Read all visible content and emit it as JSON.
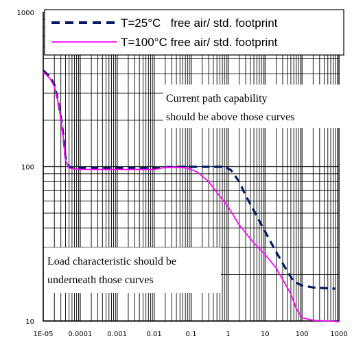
{
  "chart_data": {
    "type": "line",
    "x_scale": "log",
    "y_scale": "log",
    "xlim": [
      1e-05,
      1000
    ],
    "ylim": [
      10,
      1000
    ],
    "x_tick_labels": [
      "1E-05",
      "0.0001",
      "0.001",
      "0.01",
      "0.1",
      "1",
      "10",
      "100",
      "1000"
    ],
    "y_tick_labels": [
      "10",
      "100",
      "1000"
    ],
    "grid": true,
    "legend_position": "top-right",
    "series": [
      {
        "name": "T=25°C   free air/ std. footprint",
        "color": "#001a66",
        "style": "dashed",
        "x": [
          1e-05,
          1.5e-05,
          2e-05,
          2.5e-05,
          3e-05,
          3.5e-05,
          4e-05,
          5e-05,
          6e-05,
          8e-05,
          0.0001,
          0.0002,
          0.001,
          0.01,
          0.03,
          0.1,
          0.3,
          0.8,
          1.2,
          2,
          3,
          5,
          8,
          10,
          20,
          40,
          60,
          100,
          200,
          500,
          800
        ],
        "y": [
          420,
          385,
          340,
          270,
          210,
          160,
          115,
          100,
          99,
          98.5,
          98,
          98,
          98,
          98,
          100,
          100,
          100,
          100,
          95,
          80,
          65,
          52,
          42,
          38,
          28,
          21,
          18,
          17,
          16.5,
          16.3,
          16.2
        ]
      },
      {
        "name": "T=100°C free air/ std. footprint",
        "color": "#ff00ff",
        "style": "solid",
        "x": [
          1e-05,
          1.5e-05,
          2e-05,
          2.5e-05,
          3e-05,
          3.5e-05,
          4e-05,
          5e-05,
          6e-05,
          8e-05,
          0.0001,
          0.0002,
          0.001,
          0.01,
          0.02,
          0.05,
          0.08,
          0.15,
          0.3,
          0.5,
          1,
          2,
          5,
          10,
          20,
          50,
          70,
          100,
          200,
          500,
          1000
        ],
        "y": [
          410,
          375,
          330,
          265,
          205,
          155,
          110,
          98,
          97,
          96.5,
          96,
          96,
          96,
          96,
          99,
          99,
          98,
          92,
          80,
          68,
          55,
          42,
          32,
          27,
          22,
          15,
          12,
          10.5,
          10.1,
          10,
          9.9
        ]
      }
    ],
    "annotations": [
      {
        "lines": [
          "Current path capability",
          "should be above those curves"
        ]
      },
      {
        "lines": [
          "Load characteristic should be",
          "underneath those curves"
        ]
      }
    ]
  }
}
